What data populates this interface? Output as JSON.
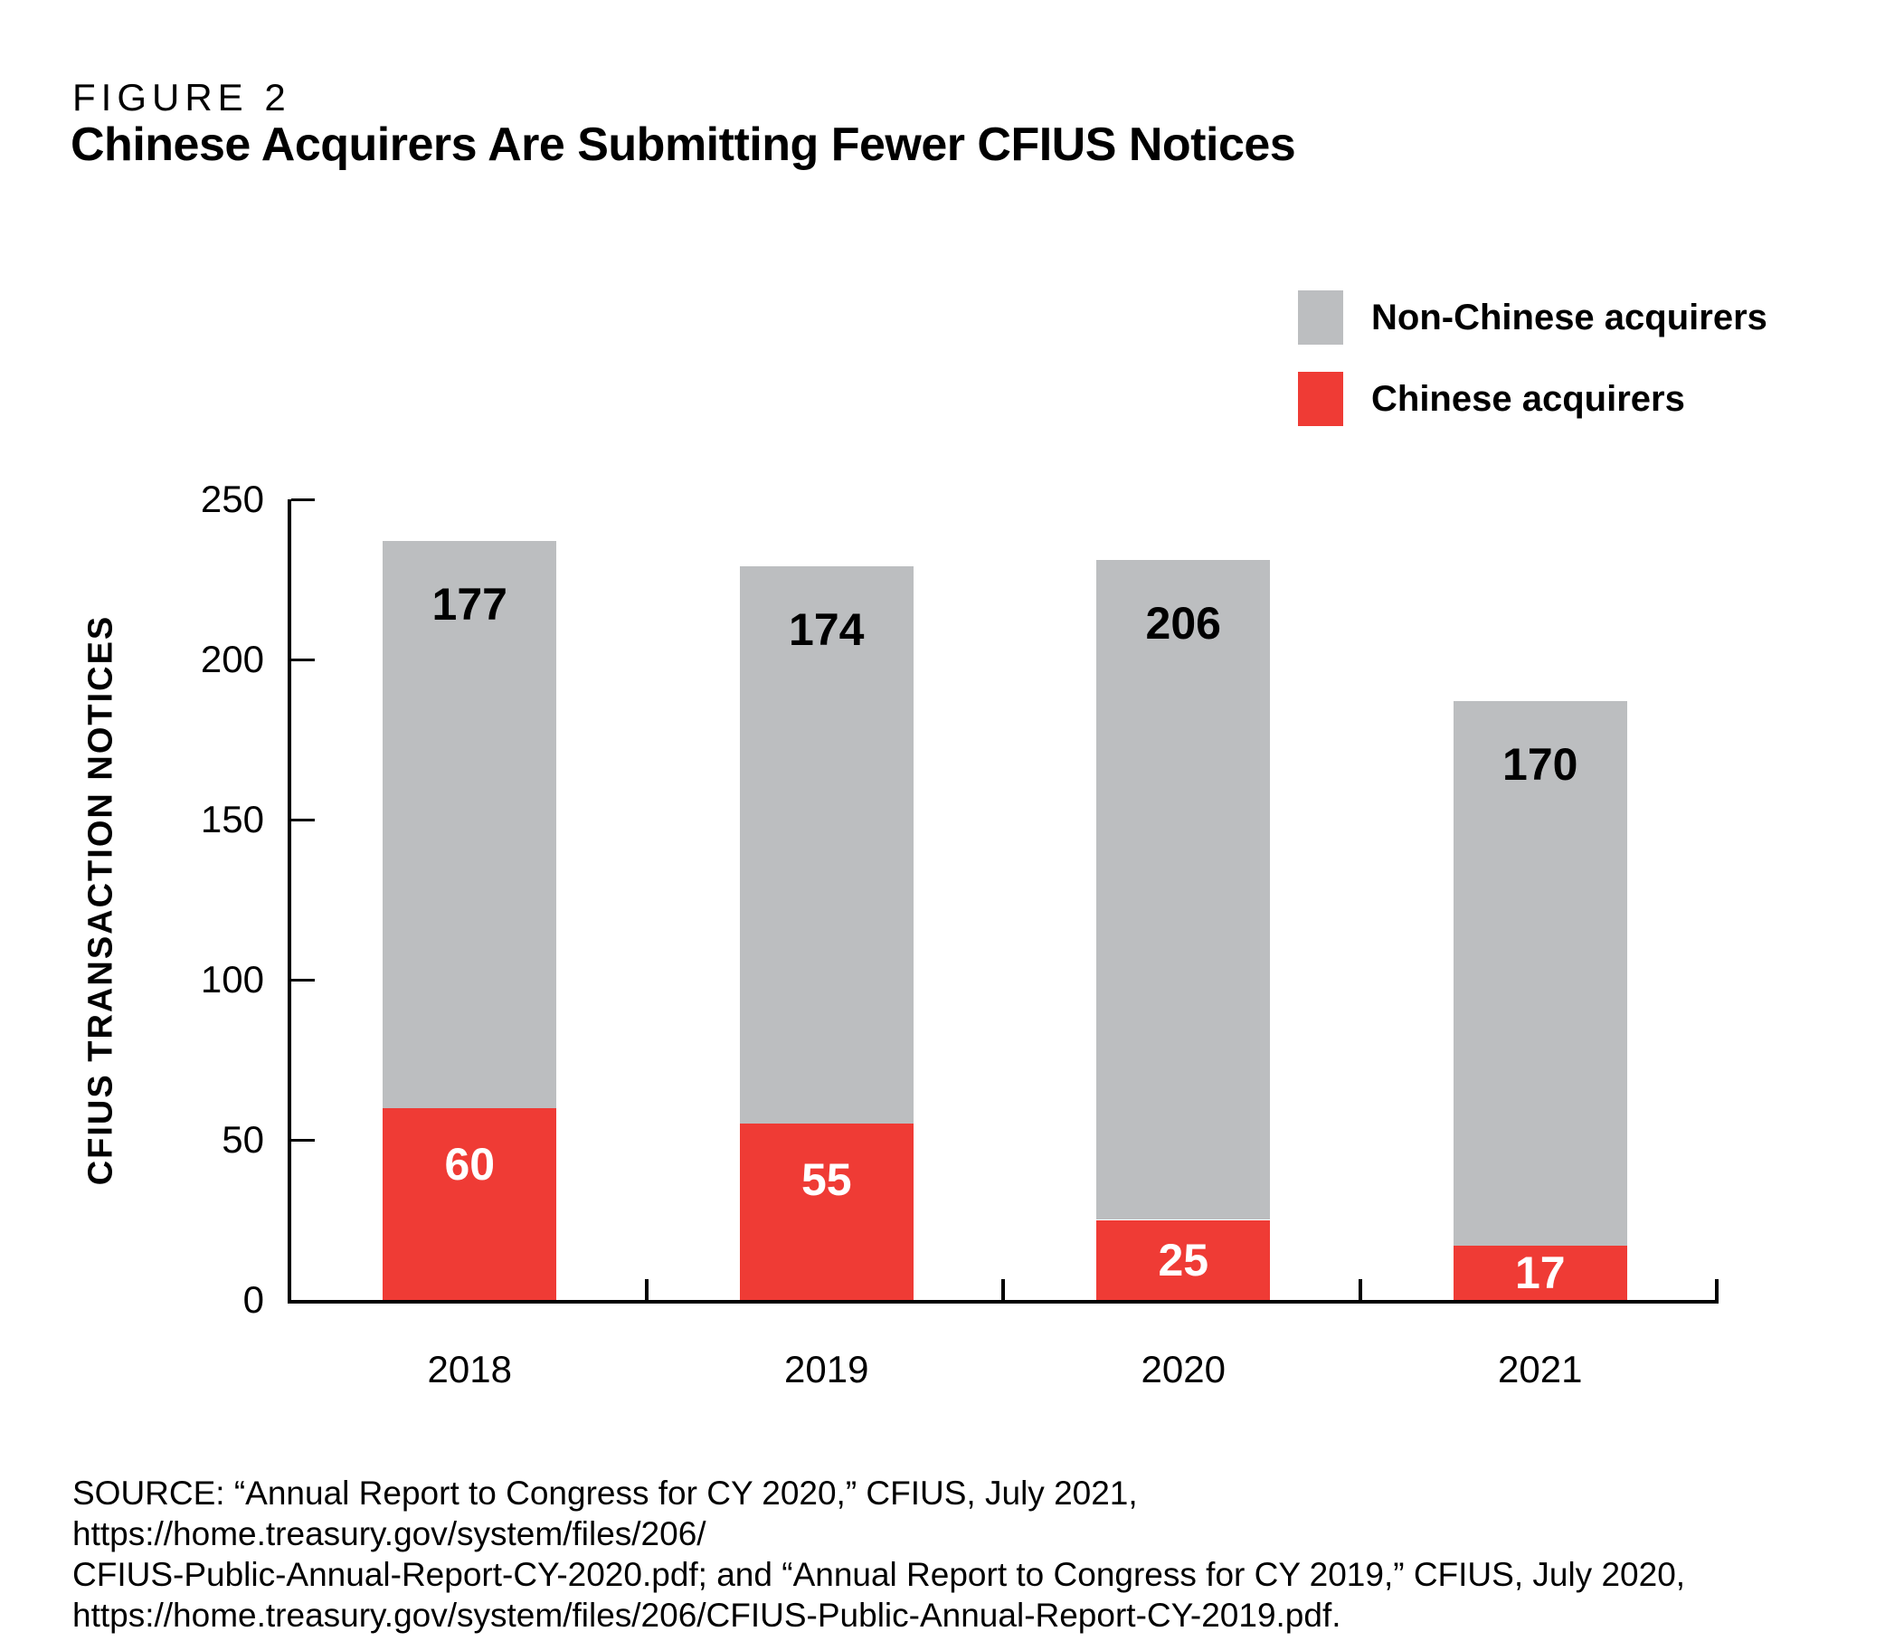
{
  "figure_label": "FIGURE 2",
  "title": "Chinese Acquirers Are Submitting Fewer CFIUS Notices",
  "legend": [
    {
      "label": "Non-Chinese acquirers",
      "color": "#BCBEC0"
    },
    {
      "label": "Chinese acquirers",
      "color": "#EF3B35"
    }
  ],
  "chart_data": {
    "type": "bar",
    "stacked": true,
    "title": "Chinese Acquirers Are Submitting Fewer CFIUS Notices",
    "categories": [
      "2018",
      "2019",
      "2020",
      "2021"
    ],
    "series": [
      {
        "name": "Chinese acquirers",
        "color": "#EF3B35",
        "label_color": "#FFFFFF",
        "values": [
          60,
          55,
          25,
          17
        ]
      },
      {
        "name": "Non-Chinese acquirers",
        "color": "#BCBEC0",
        "label_color": "#000000",
        "values": [
          177,
          174,
          206,
          170
        ]
      }
    ],
    "totals": [
      237,
      229,
      231,
      187
    ],
    "xlabel": "",
    "ylabel": "CFIUS TRANSACTION NOTICES",
    "ylim": [
      0,
      250
    ],
    "yticks": [
      0,
      50,
      100,
      150,
      200,
      250
    ],
    "grid": false,
    "legend_position": "top-right"
  },
  "source": {
    "lines": [
      "SOURCE: “Annual Report to Congress for CY 2020,” CFIUS, July 2021, https://home.treasury.gov/system/files/206/",
      "CFIUS-Public-Annual-Report-CY-2020.pdf; and “Annual Report to Congress for CY 2019,” CFIUS, July 2020,",
      "https://home.treasury.gov/system/files/206/CFIUS-Public-Annual-Report-CY-2019.pdf."
    ]
  }
}
